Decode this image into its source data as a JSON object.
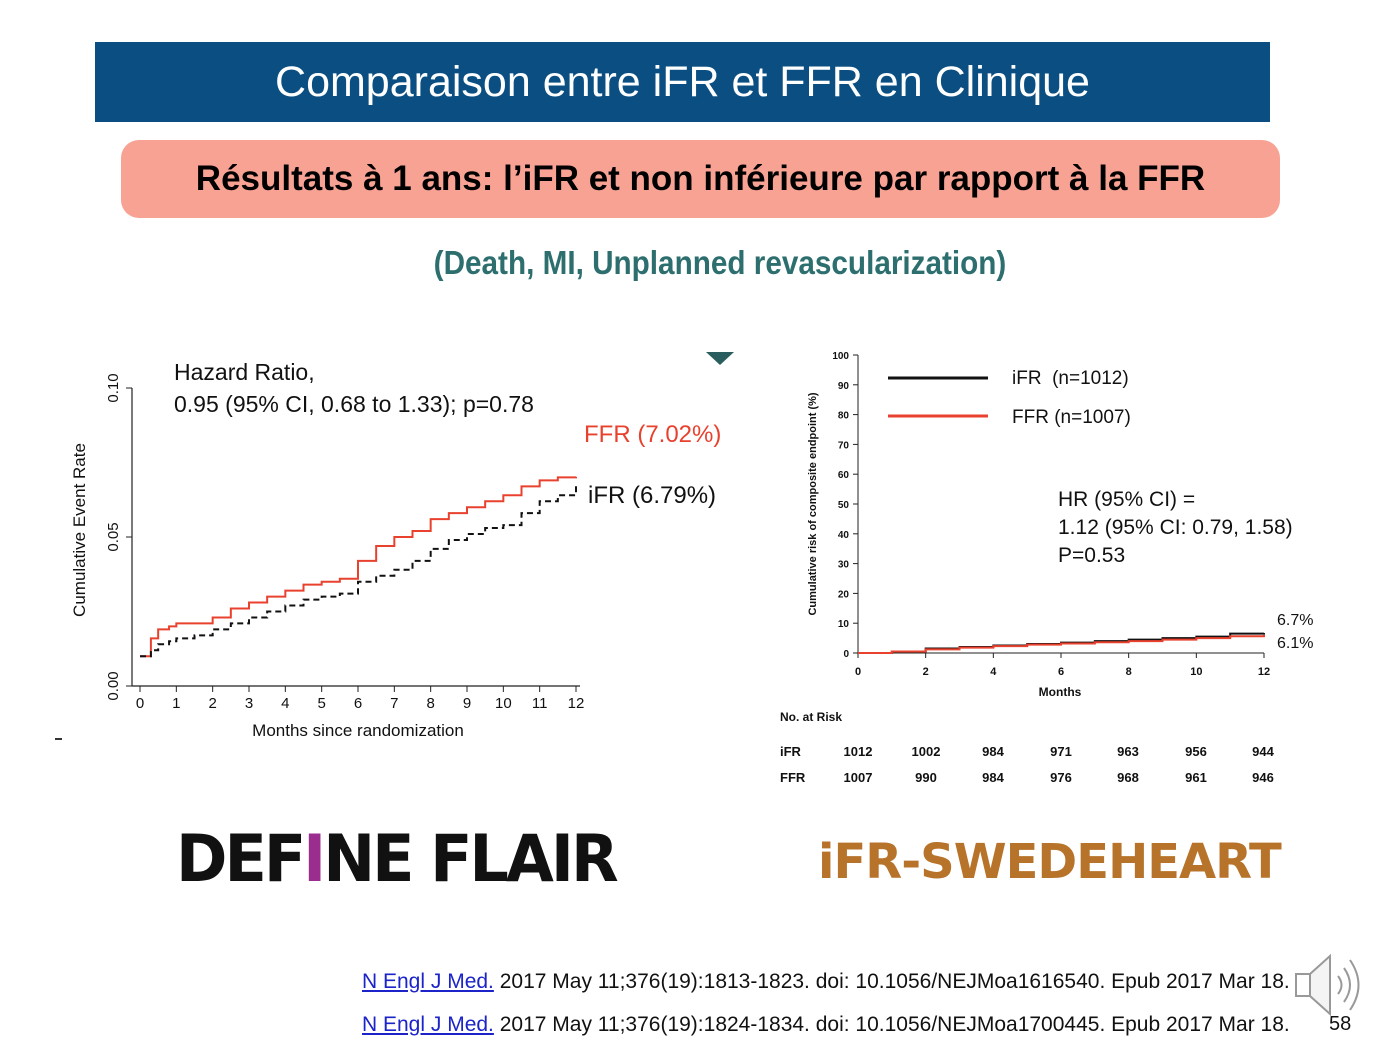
{
  "slide": {
    "title": "Comparaison entre iFR et FFR en Clinique",
    "subtitle": "Résultats à 1 ans: l’iFR et non inférieure par rapport à la FFR",
    "endpoint_label": "(Death, MI, Unplanned revascularization)",
    "page_number": "58"
  },
  "logos": {
    "define_flair": "DEFINE FLAIR",
    "swedeheart": "iFR-SWEDEHEART"
  },
  "references": [
    {
      "journal": "N Engl J Med.",
      "text": " 2017 May 11;376(19):1813-1823. doi: 10.1056/NEJMoa1616540. Epub 2017 Mar 18."
    },
    {
      "journal": "N Engl J Med.",
      "text": " 2017 May 11;376(19):1824-1834. doi: 10.1056/NEJMoa1700445. Epub 2017 Mar 18."
    }
  ],
  "colors": {
    "title_bar": "#0b4f82",
    "subtitle_box": "#f8a294",
    "ffr": "#e8412e",
    "ifr": "#111111",
    "swedeheart": "#b8732a",
    "define_i": "#9b2d8f"
  },
  "chart_data": [
    {
      "type": "line",
      "xlabel": "Months since randomization",
      "ylabel": "Cumulative Event Rate",
      "xlim": [
        0,
        12
      ],
      "ylim": [
        0,
        0.1
      ],
      "xticks": [
        "0",
        "1",
        "2",
        "3",
        "4",
        "5",
        "6",
        "7",
        "8",
        "9",
        "10",
        "11",
        "12"
      ],
      "yticks": [
        "0.00",
        "0.05",
        "0.10"
      ],
      "annotation_line1": "Hazard Ratio,",
      "annotation_line2": "0.95 (95% CI, 0.68 to 1.33); p=0.78",
      "grid": false,
      "series": [
        {
          "name": "FFR (7.02%)",
          "style": "solid",
          "x": [
            0,
            0.3,
            0.5,
            0.8,
            1.0,
            1.5,
            2.0,
            2.5,
            3.0,
            3.5,
            4.0,
            4.5,
            5.0,
            5.5,
            6.0,
            6.5,
            7.0,
            7.5,
            8.0,
            8.5,
            9.0,
            9.5,
            10.0,
            10.5,
            11.0,
            11.5,
            12.0
          ],
          "values": [
            0.01,
            0.016,
            0.019,
            0.02,
            0.021,
            0.021,
            0.023,
            0.026,
            0.028,
            0.03,
            0.032,
            0.034,
            0.035,
            0.036,
            0.042,
            0.047,
            0.05,
            0.052,
            0.056,
            0.058,
            0.06,
            0.062,
            0.064,
            0.067,
            0.069,
            0.07,
            0.0702
          ]
        },
        {
          "name": "iFR (6.79%)",
          "style": "dashed",
          "x": [
            0,
            0.3,
            0.5,
            0.8,
            1.0,
            1.5,
            2.0,
            2.5,
            3.0,
            3.5,
            4.0,
            4.5,
            5.0,
            5.5,
            6.0,
            6.5,
            7.0,
            7.5,
            8.0,
            8.5,
            9.0,
            9.5,
            10.0,
            10.5,
            11.0,
            11.5,
            12.0
          ],
          "values": [
            0.01,
            0.012,
            0.014,
            0.015,
            0.016,
            0.017,
            0.019,
            0.021,
            0.023,
            0.025,
            0.027,
            0.029,
            0.03,
            0.031,
            0.035,
            0.037,
            0.039,
            0.042,
            0.046,
            0.049,
            0.051,
            0.053,
            0.054,
            0.058,
            0.062,
            0.064,
            0.0679
          ]
        }
      ]
    },
    {
      "type": "line",
      "xlabel": "Months",
      "ylabel": "Cumulative risk of composite endpoint (%)",
      "xlim": [
        0,
        12
      ],
      "ylim": [
        0,
        100
      ],
      "xticks": [
        "0",
        "2",
        "4",
        "6",
        "8",
        "10",
        "12"
      ],
      "yticks": [
        "0",
        "10",
        "20",
        "30",
        "40",
        "50",
        "60",
        "70",
        "80",
        "90",
        "100"
      ],
      "hr_line1": "HR (95% CI) =",
      "hr_line2": "1.12 (95% CI: 0.79, 1.58)",
      "hr_line3": "P=0.53",
      "end_label_ifr": "6.7%",
      "end_label_ffr": "6.1%",
      "grid": false,
      "series": [
        {
          "name": "iFR  (n=1012)",
          "x": [
            0,
            1,
            2,
            3,
            4,
            5,
            6,
            7,
            8,
            9,
            10,
            11,
            12
          ],
          "values": [
            0,
            0.5,
            1.5,
            2.0,
            2.5,
            3.0,
            3.5,
            4.0,
            4.5,
            5.0,
            5.5,
            6.5,
            6.7
          ]
        },
        {
          "name": "FFR (n=1007)",
          "x": [
            0,
            1,
            2,
            3,
            4,
            5,
            6,
            7,
            8,
            9,
            10,
            11,
            12
          ],
          "values": [
            0,
            0.5,
            1.2,
            1.8,
            2.3,
            2.8,
            3.2,
            3.6,
            4.0,
            4.5,
            5.0,
            5.6,
            6.1
          ]
        }
      ],
      "risk_table": {
        "title": "No. at Risk",
        "rows": [
          {
            "label": "iFR",
            "values": [
              "1012",
              "1002",
              "984",
              "971",
              "963",
              "956",
              "944"
            ]
          },
          {
            "label": "FFR",
            "values": [
              "1007",
              "990",
              "984",
              "976",
              "968",
              "961",
              "946"
            ]
          }
        ]
      }
    }
  ]
}
